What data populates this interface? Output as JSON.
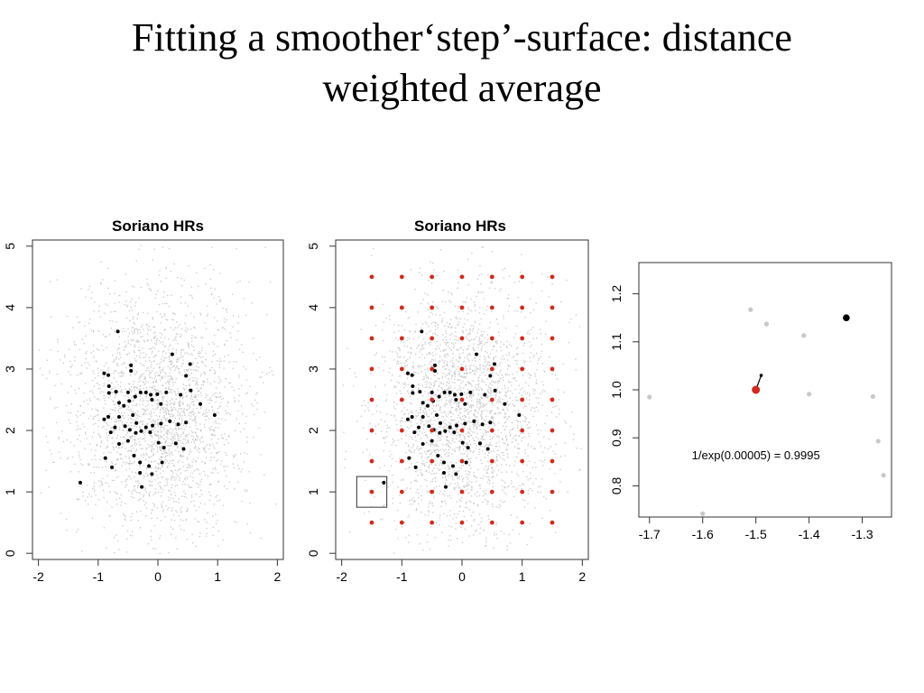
{
  "slide": {
    "title_line1": "Fitting a smoother‘step’-surface: distance",
    "title_line2": "weighted average"
  },
  "colors": {
    "background_points": "#c8c8c8",
    "sample_points": "#000000",
    "grid_points": "#d02b1e",
    "frame": "#333333"
  },
  "chart_data": [
    {
      "type": "scatter",
      "title": "Soriano HRs",
      "xlim": [
        -2.1,
        2.1
      ],
      "ylim": [
        -0.1,
        5.1
      ],
      "xticks": [
        -2,
        -1,
        0,
        1,
        2
      ],
      "yticks": [
        0,
        1,
        2,
        3,
        4,
        5
      ],
      "background_cloud": {
        "color": "#c8c8c8",
        "count": 2500,
        "center": [
          0.0,
          2.3
        ]
      },
      "series": [
        {
          "color": "#000000",
          "points": [
            [
              -0.67,
              3.61
            ],
            [
              -0.9,
              2.93
            ],
            [
              -0.83,
              2.9
            ],
            [
              -0.45,
              3.06
            ],
            [
              -0.45,
              2.97
            ],
            [
              0.24,
              3.24
            ],
            [
              0.54,
              3.08
            ],
            [
              0.47,
              2.89
            ],
            [
              -0.82,
              2.72
            ],
            [
              -0.82,
              2.61
            ],
            [
              -0.7,
              2.63
            ],
            [
              -0.5,
              2.62
            ],
            [
              -0.38,
              2.55
            ],
            [
              -0.29,
              2.62
            ],
            [
              -0.2,
              2.62
            ],
            [
              -0.12,
              2.58
            ],
            [
              -0.01,
              2.59
            ],
            [
              0.14,
              2.62
            ],
            [
              0.38,
              2.58
            ],
            [
              0.55,
              2.65
            ],
            [
              0.05,
              2.43
            ],
            [
              -0.1,
              2.5
            ],
            [
              -0.48,
              2.48
            ],
            [
              -0.57,
              2.4
            ],
            [
              -0.65,
              2.45
            ],
            [
              -0.83,
              2.22
            ],
            [
              -0.9,
              2.18
            ],
            [
              -0.65,
              2.22
            ],
            [
              -0.42,
              2.25
            ],
            [
              -0.36,
              2.12
            ],
            [
              -0.47,
              2.01
            ],
            [
              -0.55,
              2.07
            ],
            [
              -0.72,
              2.05
            ],
            [
              -0.79,
              1.97
            ],
            [
              -0.2,
              2.05
            ],
            [
              -0.09,
              2.08
            ],
            [
              0.05,
              2.11
            ],
            [
              0.2,
              2.15
            ],
            [
              0.34,
              2.1
            ],
            [
              0.47,
              2.13
            ],
            [
              0.71,
              2.43
            ],
            [
              0.95,
              2.25
            ],
            [
              -0.65,
              1.78
            ],
            [
              -0.5,
              1.83
            ],
            [
              -0.37,
              1.96
            ],
            [
              -0.28,
              1.99
            ],
            [
              -0.13,
              1.97
            ],
            [
              0.01,
              1.8
            ],
            [
              0.1,
              1.72
            ],
            [
              0.3,
              1.79
            ],
            [
              0.43,
              1.7
            ],
            [
              -0.88,
              1.55
            ],
            [
              -0.4,
              1.59
            ],
            [
              -0.3,
              1.48
            ],
            [
              -0.15,
              1.42
            ],
            [
              0.07,
              1.48
            ],
            [
              -0.77,
              1.4
            ],
            [
              -0.3,
              1.31
            ],
            [
              -0.1,
              1.29
            ],
            [
              -0.27,
              1.08
            ],
            [
              -1.3,
              1.15
            ]
          ]
        }
      ]
    },
    {
      "type": "scatter",
      "title": "Soriano HRs",
      "xlim": [
        -2.1,
        2.1
      ],
      "ylim": [
        -0.1,
        5.1
      ],
      "xticks": [
        -2,
        -1,
        0,
        1,
        2
      ],
      "yticks": [
        0,
        1,
        2,
        3,
        4,
        5
      ],
      "background_cloud": {
        "color": "#c8c8c8",
        "count": 2500,
        "center": [
          0.0,
          2.3
        ]
      },
      "series": [
        {
          "color": "#000000",
          "same_points_as_panel": 1
        },
        {
          "color": "#d02b1e",
          "grid_x": [
            -1.5,
            -1.0,
            -0.5,
            0.0,
            0.5,
            1.0,
            1.5
          ],
          "grid_y": [
            0.5,
            1.0,
            1.5,
            2.0,
            2.5,
            3.0,
            3.5,
            4.0,
            4.5
          ]
        }
      ],
      "highlight_box": {
        "x": [
          -1.75,
          -1.25
        ],
        "y": [
          0.75,
          1.25
        ]
      }
    },
    {
      "type": "scatter",
      "title": "",
      "xlim": [
        -1.72,
        -1.245
      ],
      "ylim": [
        0.735,
        1.265
      ],
      "xticks": [
        -1.7,
        -1.6,
        -1.5,
        -1.4,
        -1.3
      ],
      "yticks": [
        0.8,
        0.9,
        1.0,
        1.1,
        1.2
      ],
      "series": [
        {
          "color": "#c8c8c8",
          "points": [
            [
              -1.7,
              0.985
            ],
            [
              -1.51,
              1.167
            ],
            [
              -1.48,
              1.137
            ],
            [
              -1.41,
              1.113
            ],
            [
              -1.4,
              0.991
            ],
            [
              -1.28,
              0.986
            ],
            [
              -1.27,
              0.893
            ],
            [
              -1.26,
              0.822
            ],
            [
              -1.6,
              0.742
            ]
          ]
        },
        {
          "color": "#000000",
          "points": [
            [
              -1.33,
              1.15
            ]
          ]
        },
        {
          "color": "#000000",
          "points": [
            [
              -1.49,
              1.03
            ]
          ],
          "line_to": [
            -1.5,
            1.0
          ]
        },
        {
          "color": "#d02b1e",
          "points": [
            [
              -1.5,
              1.0
            ]
          ]
        }
      ],
      "annotation": {
        "text": "1/exp(0.00005) = 0.9995",
        "x": -1.5,
        "y": 0.855
      }
    }
  ]
}
